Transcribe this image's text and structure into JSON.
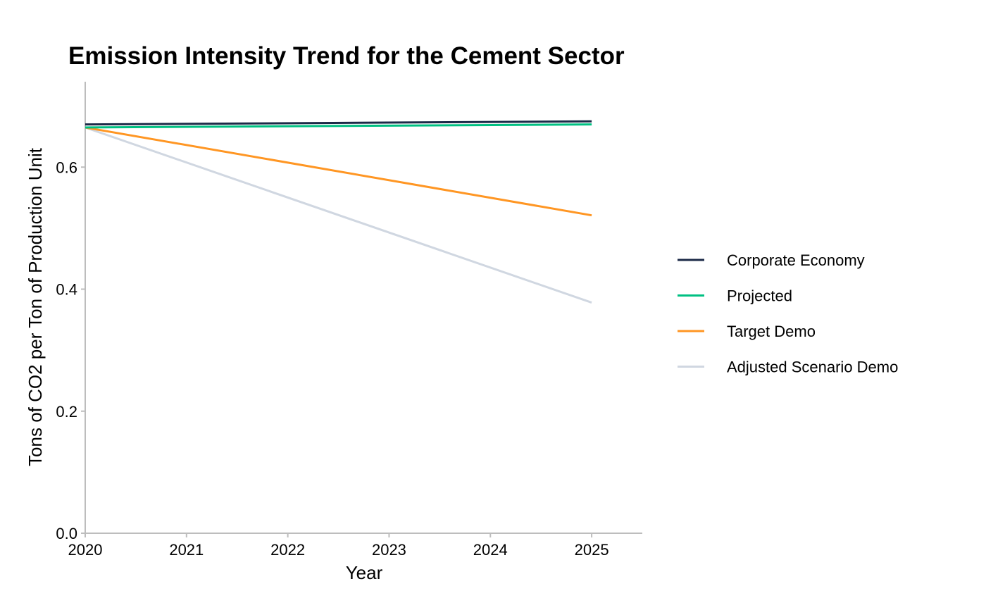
{
  "chart_data": {
    "type": "line",
    "title": "Emission Intensity Trend for the Cement Sector",
    "xlabel": "Year",
    "ylabel": "Tons of CO2 per Ton of Production Unit",
    "x": [
      2020,
      2025
    ],
    "xticks": [
      "2020",
      "2021",
      "2022",
      "2023",
      "2024",
      "2025"
    ],
    "xtick_values": [
      2020,
      2021,
      2022,
      2023,
      2024,
      2025
    ],
    "yticks": [
      "0.0",
      "0.2",
      "0.4",
      "0.6"
    ],
    "ytick_values": [
      0.0,
      0.2,
      0.4,
      0.6
    ],
    "xlim": [
      2020,
      2025.5
    ],
    "ylim": [
      0.0,
      0.74
    ],
    "grid": false,
    "legend_position": "right",
    "series": [
      {
        "name": "Corporate Economy",
        "color": "#1b2a47",
        "values": [
          0.67,
          0.675
        ]
      },
      {
        "name": "Projected",
        "color": "#00c082",
        "values": [
          0.665,
          0.67
        ]
      },
      {
        "name": "Target Demo",
        "color": "#ff9623",
        "values": [
          0.665,
          0.521
        ]
      },
      {
        "name": "Adjusted Scenario Demo",
        "color": "#d0d7e1",
        "values": [
          0.665,
          0.378
        ]
      }
    ]
  }
}
